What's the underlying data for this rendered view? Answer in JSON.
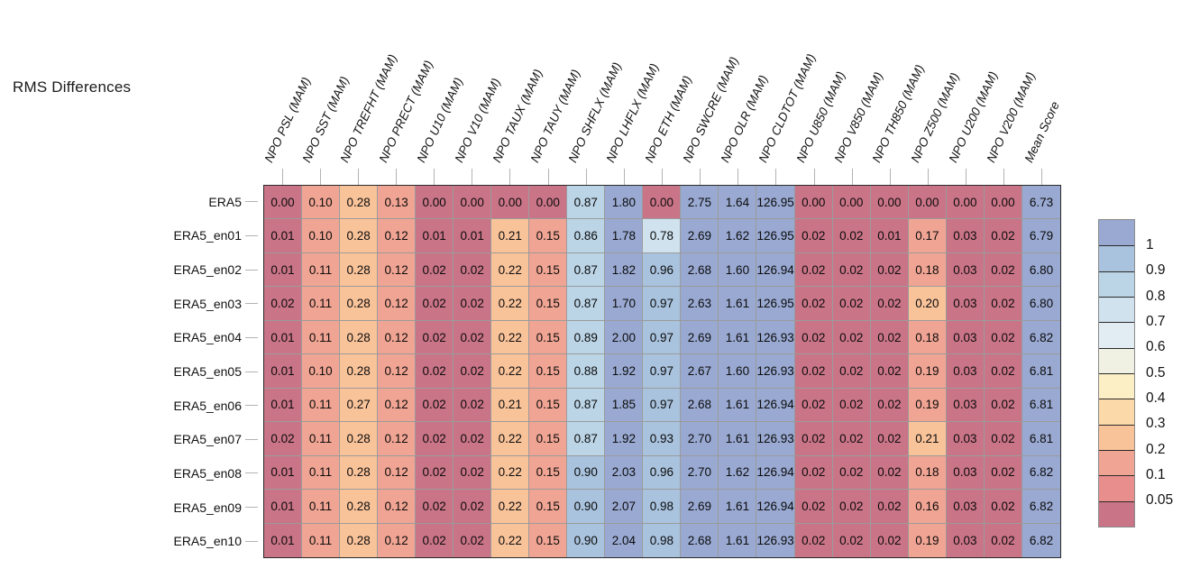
{
  "title": "RMS Differences",
  "chart_data": {
    "type": "heatmap",
    "title": "RMS Differences",
    "columns": [
      "NPO PSL (MAM)",
      "NPO SST (MAM)",
      "NPO TREFHT (MAM)",
      "NPO PRECT (MAM)",
      "NPO U10 (MAM)",
      "NPO V10 (MAM)",
      "NPO TAUX (MAM)",
      "NPO TAUY (MAM)",
      "NPO SHFLX (MAM)",
      "NPO LHFLX (MAM)",
      "NPO ETH (MAM)",
      "NPO SWCRE (MAM)",
      "NPO OLR (MAM)",
      "NPO CLDTOT (MAM)",
      "NPO U850 (MAM)",
      "NPO V850 (MAM)",
      "NPO TH850 (MAM)",
      "NPO Z500 (MAM)",
      "NPO U200 (MAM)",
      "NPO V200 (MAM)",
      "Mean Score"
    ],
    "rows": [
      "ERA5",
      "ERA5_en01",
      "ERA5_en02",
      "ERA5_en03",
      "ERA5_en04",
      "ERA5_en05",
      "ERA5_en06",
      "ERA5_en07",
      "ERA5_en08",
      "ERA5_en09",
      "ERA5_en10"
    ],
    "values": [
      [
        "0.00",
        "0.10",
        "0.28",
        "0.13",
        "0.00",
        "0.00",
        "0.00",
        "0.00",
        "0.87",
        "1.80",
        "0.00",
        "2.75",
        "1.64",
        "126.95",
        "0.00",
        "0.00",
        "0.00",
        "0.00",
        "0.00",
        "0.00",
        "6.73"
      ],
      [
        "0.01",
        "0.10",
        "0.28",
        "0.12",
        "0.01",
        "0.01",
        "0.21",
        "0.15",
        "0.86",
        "1.78",
        "0.78",
        "2.69",
        "1.62",
        "126.95",
        "0.02",
        "0.02",
        "0.01",
        "0.17",
        "0.03",
        "0.02",
        "6.79"
      ],
      [
        "0.01",
        "0.11",
        "0.28",
        "0.12",
        "0.02",
        "0.02",
        "0.22",
        "0.15",
        "0.87",
        "1.82",
        "0.96",
        "2.68",
        "1.60",
        "126.94",
        "0.02",
        "0.02",
        "0.02",
        "0.18",
        "0.03",
        "0.02",
        "6.80"
      ],
      [
        "0.02",
        "0.11",
        "0.28",
        "0.12",
        "0.02",
        "0.02",
        "0.22",
        "0.15",
        "0.87",
        "1.70",
        "0.97",
        "2.63",
        "1.61",
        "126.95",
        "0.02",
        "0.02",
        "0.02",
        "0.20",
        "0.03",
        "0.02",
        "6.80"
      ],
      [
        "0.01",
        "0.11",
        "0.28",
        "0.12",
        "0.02",
        "0.02",
        "0.22",
        "0.15",
        "0.89",
        "2.00",
        "0.97",
        "2.69",
        "1.61",
        "126.93",
        "0.02",
        "0.02",
        "0.02",
        "0.18",
        "0.03",
        "0.02",
        "6.82"
      ],
      [
        "0.01",
        "0.10",
        "0.28",
        "0.12",
        "0.02",
        "0.02",
        "0.22",
        "0.15",
        "0.88",
        "1.92",
        "0.97",
        "2.67",
        "1.60",
        "126.93",
        "0.02",
        "0.02",
        "0.02",
        "0.19",
        "0.03",
        "0.02",
        "6.81"
      ],
      [
        "0.01",
        "0.11",
        "0.27",
        "0.12",
        "0.02",
        "0.02",
        "0.21",
        "0.15",
        "0.87",
        "1.85",
        "0.97",
        "2.68",
        "1.61",
        "126.94",
        "0.02",
        "0.02",
        "0.02",
        "0.19",
        "0.03",
        "0.02",
        "6.81"
      ],
      [
        "0.02",
        "0.11",
        "0.28",
        "0.12",
        "0.02",
        "0.02",
        "0.22",
        "0.15",
        "0.87",
        "1.92",
        "0.93",
        "2.70",
        "1.61",
        "126.93",
        "0.02",
        "0.02",
        "0.02",
        "0.21",
        "0.03",
        "0.02",
        "6.81"
      ],
      [
        "0.01",
        "0.11",
        "0.28",
        "0.12",
        "0.02",
        "0.02",
        "0.22",
        "0.15",
        "0.90",
        "2.03",
        "0.96",
        "2.70",
        "1.62",
        "126.94",
        "0.02",
        "0.02",
        "0.02",
        "0.18",
        "0.03",
        "0.02",
        "6.82"
      ],
      [
        "0.01",
        "0.11",
        "0.28",
        "0.12",
        "0.02",
        "0.02",
        "0.22",
        "0.15",
        "0.90",
        "2.07",
        "0.98",
        "2.69",
        "1.61",
        "126.94",
        "0.02",
        "0.02",
        "0.02",
        "0.16",
        "0.03",
        "0.02",
        "6.82"
      ],
      [
        "0.01",
        "0.11",
        "0.28",
        "0.12",
        "0.02",
        "0.02",
        "0.22",
        "0.15",
        "0.90",
        "2.04",
        "0.98",
        "2.68",
        "1.61",
        "126.93",
        "0.02",
        "0.02",
        "0.02",
        "0.19",
        "0.03",
        "0.02",
        "6.82"
      ]
    ],
    "colorscale": {
      "thresholds": [
        0.05,
        0.1,
        0.2,
        0.3,
        0.4,
        0.5,
        0.6,
        0.7,
        0.8,
        0.9,
        1.0
      ],
      "colors_low_to_high": [
        "#ca7487",
        "#e88e8c",
        "#f0a493",
        "#f9c39a",
        "#fbd9a9",
        "#fceec5",
        "#f0f1e2",
        "#e2edf3",
        "#cfe2ee",
        "#bbd5e7",
        "#a9c3de",
        "#99a9d2"
      ]
    },
    "legend": {
      "position": "right",
      "labels_top_to_bottom": [
        "1",
        "0.9",
        "0.8",
        "0.7",
        "0.6",
        "0.5",
        "0.4",
        "0.3",
        "0.2",
        "0.1",
        "0.05"
      ]
    },
    "grid_on": true
  }
}
